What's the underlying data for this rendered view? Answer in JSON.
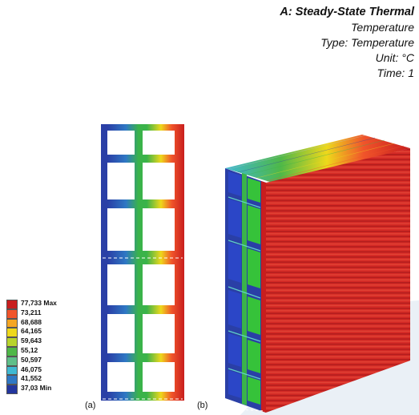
{
  "header": {
    "title": "A: Steady-State Thermal",
    "line2": "Temperature",
    "line3": "Type: Temperature",
    "line4": "Unit: °C",
    "line5": "Time: 1"
  },
  "legend": {
    "items": [
      {
        "label": "77,733 Max",
        "color": "#c81e1e"
      },
      {
        "label": "73,211",
        "color": "#f0542a"
      },
      {
        "label": "68,688",
        "color": "#f5a623"
      },
      {
        "label": "64,165",
        "color": "#eed81b"
      },
      {
        "label": "59,643",
        "color": "#b8d42c"
      },
      {
        "label": "55,12",
        "color": "#4fb848"
      },
      {
        "label": "50,597",
        "color": "#5fbf8a"
      },
      {
        "label": "46,075",
        "color": "#3fb9d2"
      },
      {
        "label": "41,552",
        "color": "#2f78c4"
      },
      {
        "label": "37,03 Min",
        "color": "#23369e"
      }
    ]
  },
  "panels": {
    "a_label": "(a)",
    "b_label": "(b)"
  },
  "colors": {
    "hot": "#d52b26",
    "mid": "#3ab34a",
    "cold": "#2a3fa6",
    "background_wedge": "#e8eef5"
  }
}
